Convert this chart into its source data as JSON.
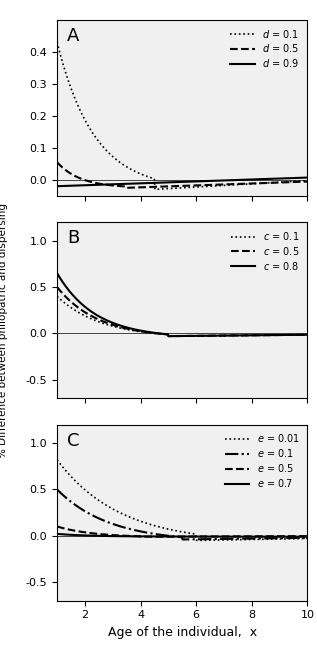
{
  "panel_A": {
    "label": "A",
    "ylim": [
      -0.05,
      0.5
    ],
    "yticks": [
      0.0,
      0.1,
      0.2,
      0.3,
      0.4
    ],
    "series": [
      {
        "label": "d = 0.1",
        "linestyle": "dotted",
        "linewidth": 1.2
      },
      {
        "label": "d = 0.5",
        "linestyle": "dashed",
        "linewidth": 1.5
      },
      {
        "label": "d = 0.9",
        "linestyle": "solid",
        "linewidth": 1.5
      }
    ]
  },
  "panel_B": {
    "label": "B",
    "ylim": [
      -0.7,
      1.2
    ],
    "yticks": [
      -0.5,
      0.0,
      0.5,
      1.0
    ],
    "series": [
      {
        "label": "c = 0.1",
        "linestyle": "dotted",
        "linewidth": 1.2
      },
      {
        "label": "c = 0.5",
        "linestyle": "dashed",
        "linewidth": 1.5
      },
      {
        "label": "c = 0.8",
        "linestyle": "solid",
        "linewidth": 1.5
      }
    ]
  },
  "panel_C": {
    "label": "C",
    "ylim": [
      -0.7,
      1.2
    ],
    "yticks": [
      -0.5,
      0.0,
      0.5,
      1.0
    ],
    "series": [
      {
        "label": "e = 0.01",
        "linestyle": "dotted",
        "linewidth": 1.2
      },
      {
        "label": "e = 0.1",
        "linestyle": "dashdot",
        "linewidth": 1.5
      },
      {
        "label": "e = 0.5",
        "linestyle": "dashed",
        "linewidth": 1.5
      },
      {
        "label": "e = 0.7",
        "linestyle": "solid",
        "linewidth": 1.5
      }
    ]
  },
  "color": "black",
  "bg_color": "#f0f0f0",
  "xlabel": "Age of the individual,  x",
  "ylabel": "% Difference between philopatric and dispersing"
}
